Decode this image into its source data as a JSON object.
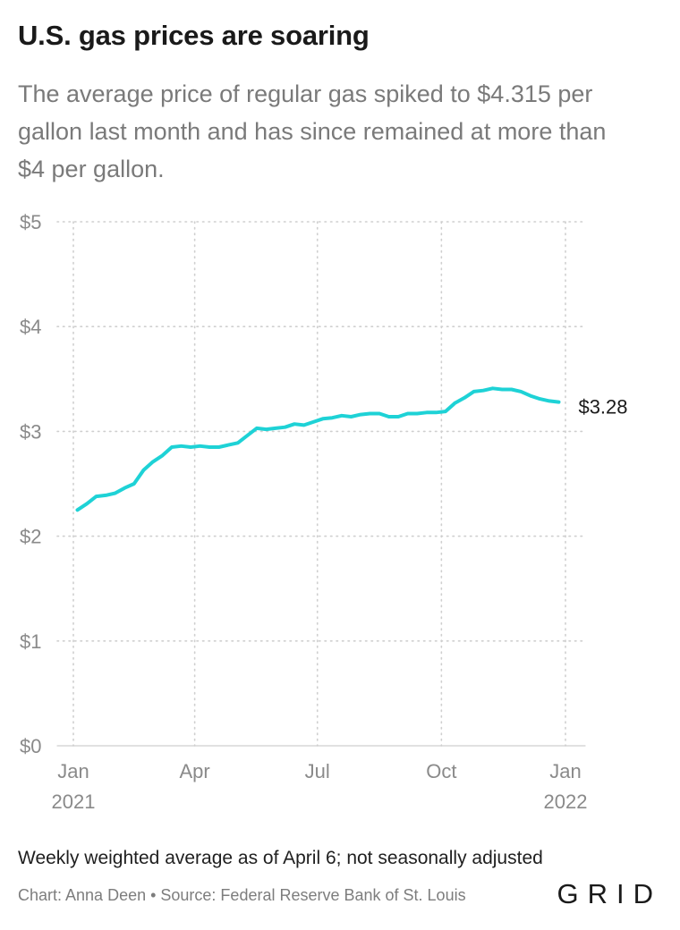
{
  "header": {
    "title": "U.S. gas prices are soaring",
    "subtitle": "The average price of regular gas spiked to $4.315 per gallon last month and has since remained at more than $4 per gallon."
  },
  "footer": {
    "note": "Weekly weighted average as of April 6; not seasonally adjusted",
    "credit": "Chart: Anna Deen • Source: Federal Reserve Bank of St. Louis",
    "logo": "GRID"
  },
  "chart_data": {
    "type": "line",
    "title": "U.S. gas prices are soaring",
    "xlabel": "",
    "ylabel": "",
    "ylim": [
      0,
      5
    ],
    "y_ticks": [
      0,
      1,
      2,
      3,
      4,
      5
    ],
    "y_tick_labels": [
      "$0",
      "$1",
      "$2",
      "$3",
      "$4",
      "$5"
    ],
    "x_ticks": [
      {
        "date": "2021-01-01",
        "label": "Jan",
        "year": "2021"
      },
      {
        "date": "2021-04-01",
        "label": "Apr",
        "year": ""
      },
      {
        "date": "2021-07-01",
        "label": "Jul",
        "year": ""
      },
      {
        "date": "2021-10-01",
        "label": "Oct",
        "year": ""
      },
      {
        "date": "2022-01-01",
        "label": "Jan",
        "year": "2022"
      }
    ],
    "grid": true,
    "line_color": "#1ed2d6",
    "end_label": "$3.28",
    "series": [
      {
        "points": [
          [
            "2021-01-04",
            2.25
          ],
          [
            "2021-01-11",
            2.31
          ],
          [
            "2021-01-18",
            2.38
          ],
          [
            "2021-01-25",
            2.39
          ],
          [
            "2021-02-01",
            2.41
          ],
          [
            "2021-02-08",
            2.46
          ],
          [
            "2021-02-15",
            2.5
          ],
          [
            "2021-02-22",
            2.63
          ],
          [
            "2021-03-01",
            2.71
          ],
          [
            "2021-03-08",
            2.77
          ],
          [
            "2021-03-15",
            2.85
          ],
          [
            "2021-03-22",
            2.86
          ],
          [
            "2021-03-29",
            2.85
          ],
          [
            "2021-04-05",
            2.86
          ],
          [
            "2021-04-12",
            2.85
          ],
          [
            "2021-04-19",
            2.85
          ],
          [
            "2021-04-26",
            2.87
          ],
          [
            "2021-05-03",
            2.89
          ],
          [
            "2021-05-10",
            2.96
          ],
          [
            "2021-05-17",
            3.03
          ],
          [
            "2021-05-24",
            3.02
          ],
          [
            "2021-05-31",
            3.03
          ],
          [
            "2021-06-07",
            3.04
          ],
          [
            "2021-06-14",
            3.07
          ],
          [
            "2021-06-21",
            3.06
          ],
          [
            "2021-06-28",
            3.09
          ],
          [
            "2021-07-05",
            3.12
          ],
          [
            "2021-07-12",
            3.13
          ],
          [
            "2021-07-19",
            3.15
          ],
          [
            "2021-07-26",
            3.14
          ],
          [
            "2021-08-02",
            3.16
          ],
          [
            "2021-08-09",
            3.17
          ],
          [
            "2021-08-16",
            3.17
          ],
          [
            "2021-08-23",
            3.14
          ],
          [
            "2021-08-30",
            3.14
          ],
          [
            "2021-09-06",
            3.17
          ],
          [
            "2021-09-13",
            3.17
          ],
          [
            "2021-09-20",
            3.18
          ],
          [
            "2021-09-27",
            3.18
          ],
          [
            "2021-10-04",
            3.19
          ],
          [
            "2021-10-11",
            3.27
          ],
          [
            "2021-10-18",
            3.32
          ],
          [
            "2021-10-25",
            3.38
          ],
          [
            "2021-11-01",
            3.39
          ],
          [
            "2021-11-08",
            3.41
          ],
          [
            "2021-11-15",
            3.4
          ],
          [
            "2021-11-22",
            3.4
          ],
          [
            "2021-11-29",
            3.38
          ],
          [
            "2021-12-06",
            3.34
          ],
          [
            "2021-12-13",
            3.31
          ],
          [
            "2021-12-20",
            3.29
          ],
          [
            "2021-12-27",
            3.28
          ]
        ]
      }
    ]
  }
}
